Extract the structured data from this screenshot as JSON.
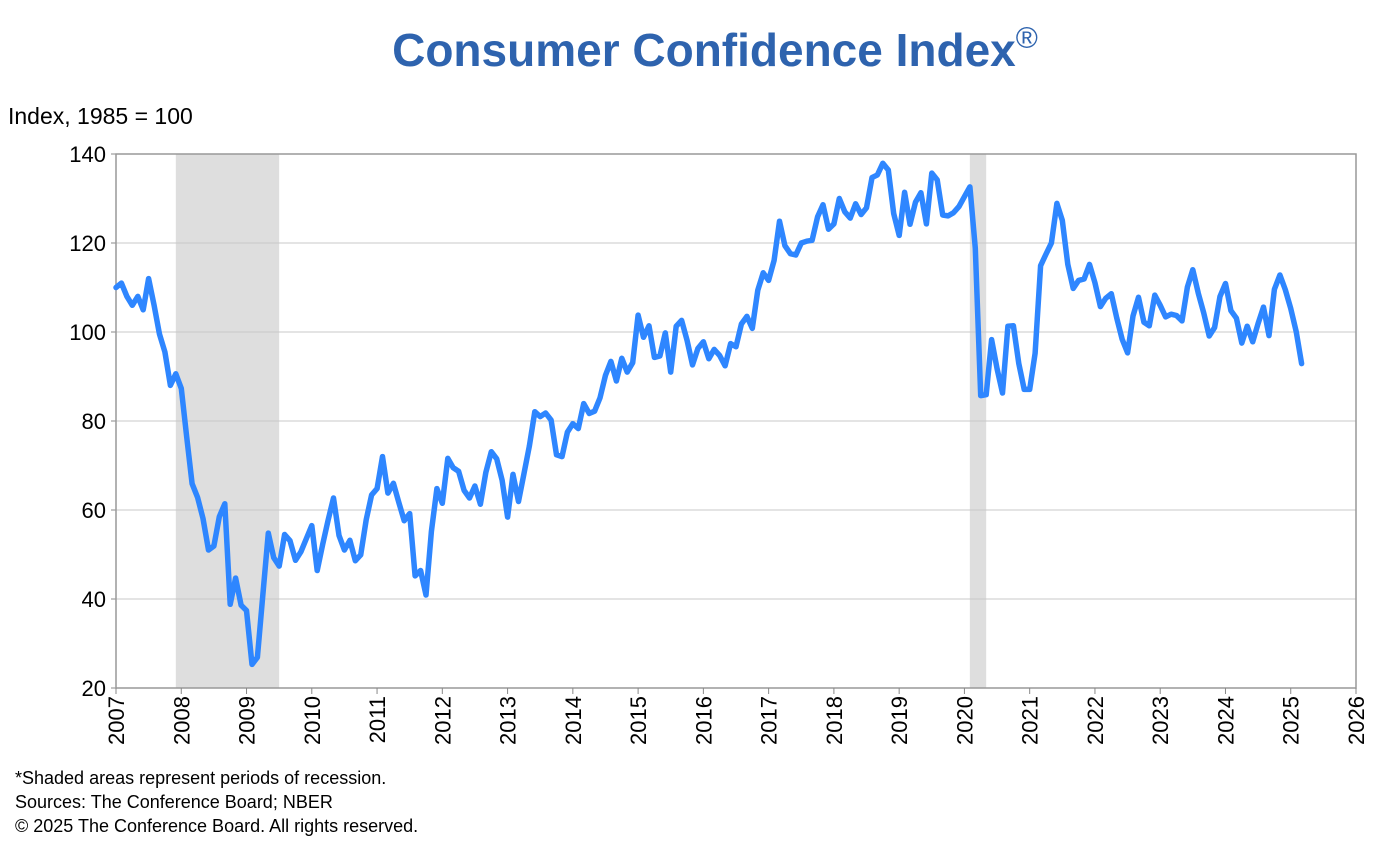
{
  "chart_data": {
    "type": "line",
    "title": "Consumer Confidence Index",
    "title_mark": "®",
    "ylabel": "Index, 1985 = 100",
    "xlabel": "",
    "ylim": [
      20,
      140
    ],
    "yticks": [
      20,
      40,
      60,
      80,
      100,
      120,
      140
    ],
    "xlim": [
      2007,
      2026
    ],
    "xticks": [
      "2007",
      "2008",
      "2009",
      "2010",
      "2011",
      "2012",
      "2013",
      "2014",
      "2015",
      "2016",
      "2017",
      "2018",
      "2019",
      "2020",
      "2021",
      "2022",
      "2023",
      "2024",
      "2025",
      "2026"
    ],
    "grid": "horizontal",
    "line_color": "#2E86FF",
    "recession_color": "#DEDEDE",
    "recessions": [
      [
        "2007-12",
        "2009-06"
      ],
      [
        "2020-02",
        "2020-04"
      ]
    ],
    "series": [
      {
        "start": "2007-01",
        "frequency": "monthly",
        "values": [
          110,
          111,
          108,
          106,
          108,
          105,
          112,
          106,
          99.5,
          95.5,
          88,
          90.6,
          87.3,
          76.4,
          65.9,
          62.8,
          58.1,
          51.0,
          51.9,
          58.5,
          61.4,
          38.8,
          44.7,
          38.6,
          37.4,
          25.3,
          26.9,
          40.8,
          54.8,
          49.3,
          47.4,
          54.5,
          53.1,
          48.7,
          50.6,
          53.6,
          56.5,
          46.4,
          52.3,
          57.7,
          62.7,
          54.3,
          51.0,
          53.2,
          48.6,
          49.9,
          57.8,
          63.4,
          64.8,
          72.0,
          63.8,
          66.0,
          61.7,
          57.6,
          59.2,
          45.2,
          46.4,
          40.9,
          55.2,
          64.8,
          61.5,
          71.6,
          69.5,
          68.7,
          64.4,
          62.7,
          65.4,
          61.3,
          68.4,
          73.1,
          71.5,
          66.7,
          58.4,
          68.0,
          61.9,
          68.1,
          74.3,
          82.1,
          81.0,
          81.8,
          80.2,
          72.4,
          72.0,
          77.5,
          79.4,
          78.3,
          83.9,
          81.7,
          82.2,
          85.2,
          90.3,
          93.4,
          89.0,
          94.1,
          91.0,
          93.1,
          103.8,
          98.8,
          101.4,
          94.3,
          94.6,
          99.8,
          91.0,
          101.3,
          102.6,
          98.1,
          92.6,
          96.3,
          97.8,
          94.0,
          96.1,
          94.7,
          92.4,
          97.4,
          96.7,
          101.8,
          103.5,
          100.8,
          109.4,
          113.3,
          111.6,
          116.1,
          124.9,
          119.4,
          117.6,
          117.3,
          120.0,
          120.4,
          120.6,
          125.9,
          128.6,
          123.1,
          124.3,
          130.0,
          127.0,
          125.6,
          128.8,
          126.4,
          127.9,
          134.7,
          135.3,
          137.9,
          136.4,
          126.6,
          121.7,
          131.4,
          124.2,
          129.2,
          131.3,
          124.3,
          135.7,
          134.2,
          126.3,
          126.1,
          126.8,
          128.2,
          130.4,
          132.6,
          118.8,
          85.7,
          85.9,
          98.3,
          91.7,
          86.3,
          101.3,
          101.4,
          92.9,
          87.1,
          87.1,
          95.2,
          114.9,
          117.5,
          120.0,
          128.9,
          125.1,
          115.2,
          109.8,
          111.6,
          111.9,
          115.2,
          111.1,
          105.7,
          107.6,
          108.6,
          103.2,
          98.4,
          95.3,
          103.6,
          107.8,
          102.2,
          101.4,
          108.3,
          106.0,
          103.4,
          104.0,
          103.7,
          102.5,
          110.1,
          114.0,
          108.7,
          104.3,
          99.1,
          101.0,
          108.0,
          110.9,
          104.8,
          103.1,
          97.5,
          101.3,
          97.8,
          101.9,
          105.6,
          99.2,
          109.6,
          112.8,
          109.5,
          105.3,
          100.1,
          92.9
        ]
      }
    ]
  },
  "footnotes": {
    "shading": "*Shaded areas represent periods of recession.",
    "sources": "Sources: The Conference Board;  NBER",
    "copyright": "© 2025 The Conference Board. All rights reserved."
  }
}
